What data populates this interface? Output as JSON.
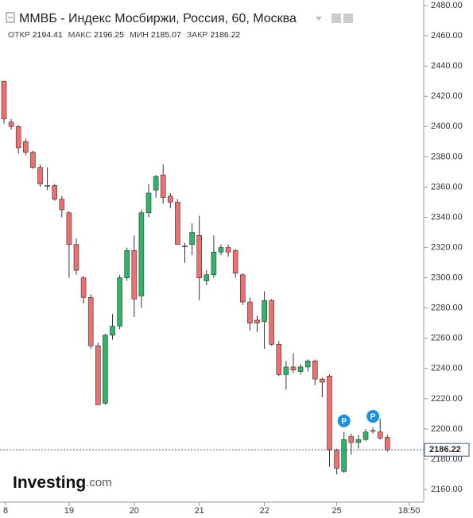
{
  "chart_data": {
    "type": "candlestick",
    "title": "ММВБ - Индекс Мосбиржи, Россия, 60, Москва",
    "readout": [
      {
        "label": "ОТКР",
        "value": 2194.41
      },
      {
        "label": "МАКС",
        "value": 2196.25
      },
      {
        "label": "МИН",
        "value": 2185.07
      },
      {
        "label": "ЗАКР",
        "value": 2186.22
      }
    ],
    "last_price": 2186.22,
    "logo": "Investing",
    "logo_suffix": ".com",
    "annotation": "P",
    "annotation_at": [
      47,
      51
    ],
    "categories": [
      "8",
      null,
      null,
      null,
      null,
      null,
      null,
      null,
      null,
      "19",
      null,
      null,
      null,
      null,
      null,
      null,
      null,
      null,
      "20",
      null,
      null,
      null,
      null,
      null,
      null,
      null,
      null,
      "21",
      null,
      null,
      null,
      null,
      null,
      null,
      null,
      null,
      "22",
      null,
      null,
      null,
      null,
      null,
      null,
      null,
      null,
      null,
      "25",
      null,
      null,
      null,
      null,
      null,
      null,
      null,
      null,
      null,
      "18:50"
    ],
    "open": [
      2430,
      2403,
      2400,
      2390,
      2383,
      2373,
      2361,
      2361,
      2352,
      2343,
      2322,
      2300,
      2287,
      2255,
      2217,
      2262,
      2268,
      2300,
      2318,
      2288,
      2343,
      2358,
      2368,
      2354,
      2350,
      2321,
      2322,
      2328,
      2298,
      2302,
      2317,
      2320,
      2318,
      2302,
      2284,
      2272,
      2271,
      2285,
      2256,
      2236,
      2241,
      2238,
      2241,
      2245,
      2233,
      2235,
      2186,
      2172,
      2195,
      2191,
      2193,
      2199,
      2198,
      2194.41,
      null,
      null,
      null
    ],
    "high": [
      2430,
      2405,
      2401,
      2392,
      2384,
      2375,
      2373,
      2362,
      2354,
      2344,
      2326,
      2301,
      2289,
      2257,
      2263,
      2276,
      2302,
      2320,
      2328,
      2345,
      2362,
      2368,
      2375,
      2356,
      2352,
      2323,
      2336,
      2341,
      2305,
      2328,
      2322,
      2322,
      2319,
      2303,
      2287,
      2275,
      2291,
      2286,
      2258,
      2245,
      2250,
      2243,
      2246,
      2246,
      2234,
      2236,
      2187,
      2198,
      2197,
      2196,
      2200,
      2201,
      2207,
      2196.25,
      null,
      null,
      null
    ],
    "low": [
      2402,
      2398,
      2382,
      2381,
      2372,
      2360,
      2358,
      2351,
      2340,
      2300,
      2302,
      2283,
      2253,
      2216,
      2216,
      2259,
      2266,
      2298,
      2274,
      2280,
      2340,
      2353,
      2349,
      2346,
      2322,
      2310,
      2315,
      2285,
      2295,
      2300,
      2315,
      2314,
      2300,
      2282,
      2265,
      2264,
      2253,
      2255,
      2235,
      2226,
      2237,
      2236,
      2238,
      2229,
      2221,
      2175,
      2170,
      2171,
      2183,
      2187,
      2192,
      2197,
      2193,
      2185.07,
      null,
      null,
      null
    ],
    "close": [
      2405,
      2400,
      2386,
      2383,
      2373,
      2362,
      2361,
      2352,
      2345,
      2322,
      2305,
      2287,
      2255,
      2216,
      2262,
      2268,
      2300,
      2318,
      2286,
      2343,
      2356,
      2367,
      2353,
      2350,
      2322,
      2321,
      2330,
      2300,
      2302,
      2317,
      2320,
      2317,
      2303,
      2284,
      2270,
      2270,
      2285,
      2256,
      2236,
      2241,
      2239,
      2241,
      2245,
      2233,
      2231,
      2186,
      2174,
      2193,
      2191,
      2193,
      2198,
      2199,
      2194,
      2186.22,
      null,
      null,
      null
    ],
    "up_color": "#2fb56a",
    "down_color": "#ef6e6e",
    "ylim": [
      2144.8,
      2483.7
    ],
    "yticks": [
      {
        "value": 2160,
        "label": "2160.00"
      },
      {
        "value": 2180,
        "label": "2180.00"
      },
      {
        "value": 2200,
        "label": "2200.00"
      },
      {
        "value": 2220,
        "label": "2220.00"
      },
      {
        "value": 2240,
        "label": "2240.00"
      },
      {
        "value": 2260,
        "label": "2260.00"
      },
      {
        "value": 2280,
        "label": "2280.00"
      },
      {
        "value": 2300,
        "label": "2300.00"
      },
      {
        "value": 2320,
        "label": "2320.00"
      },
      {
        "value": 2340,
        "label": "2340.00"
      },
      {
        "value": 2360,
        "label": "2360.00"
      },
      {
        "value": 2380,
        "label": "2380.00"
      },
      {
        "value": 2400,
        "label": "2400.00"
      },
      {
        "value": 2420,
        "label": "2420.00"
      },
      {
        "value": 2440,
        "label": "2440.00"
      },
      {
        "value": 2460,
        "label": "2460.00"
      },
      {
        "value": 2480,
        "label": "2480.00"
      }
    ]
  }
}
